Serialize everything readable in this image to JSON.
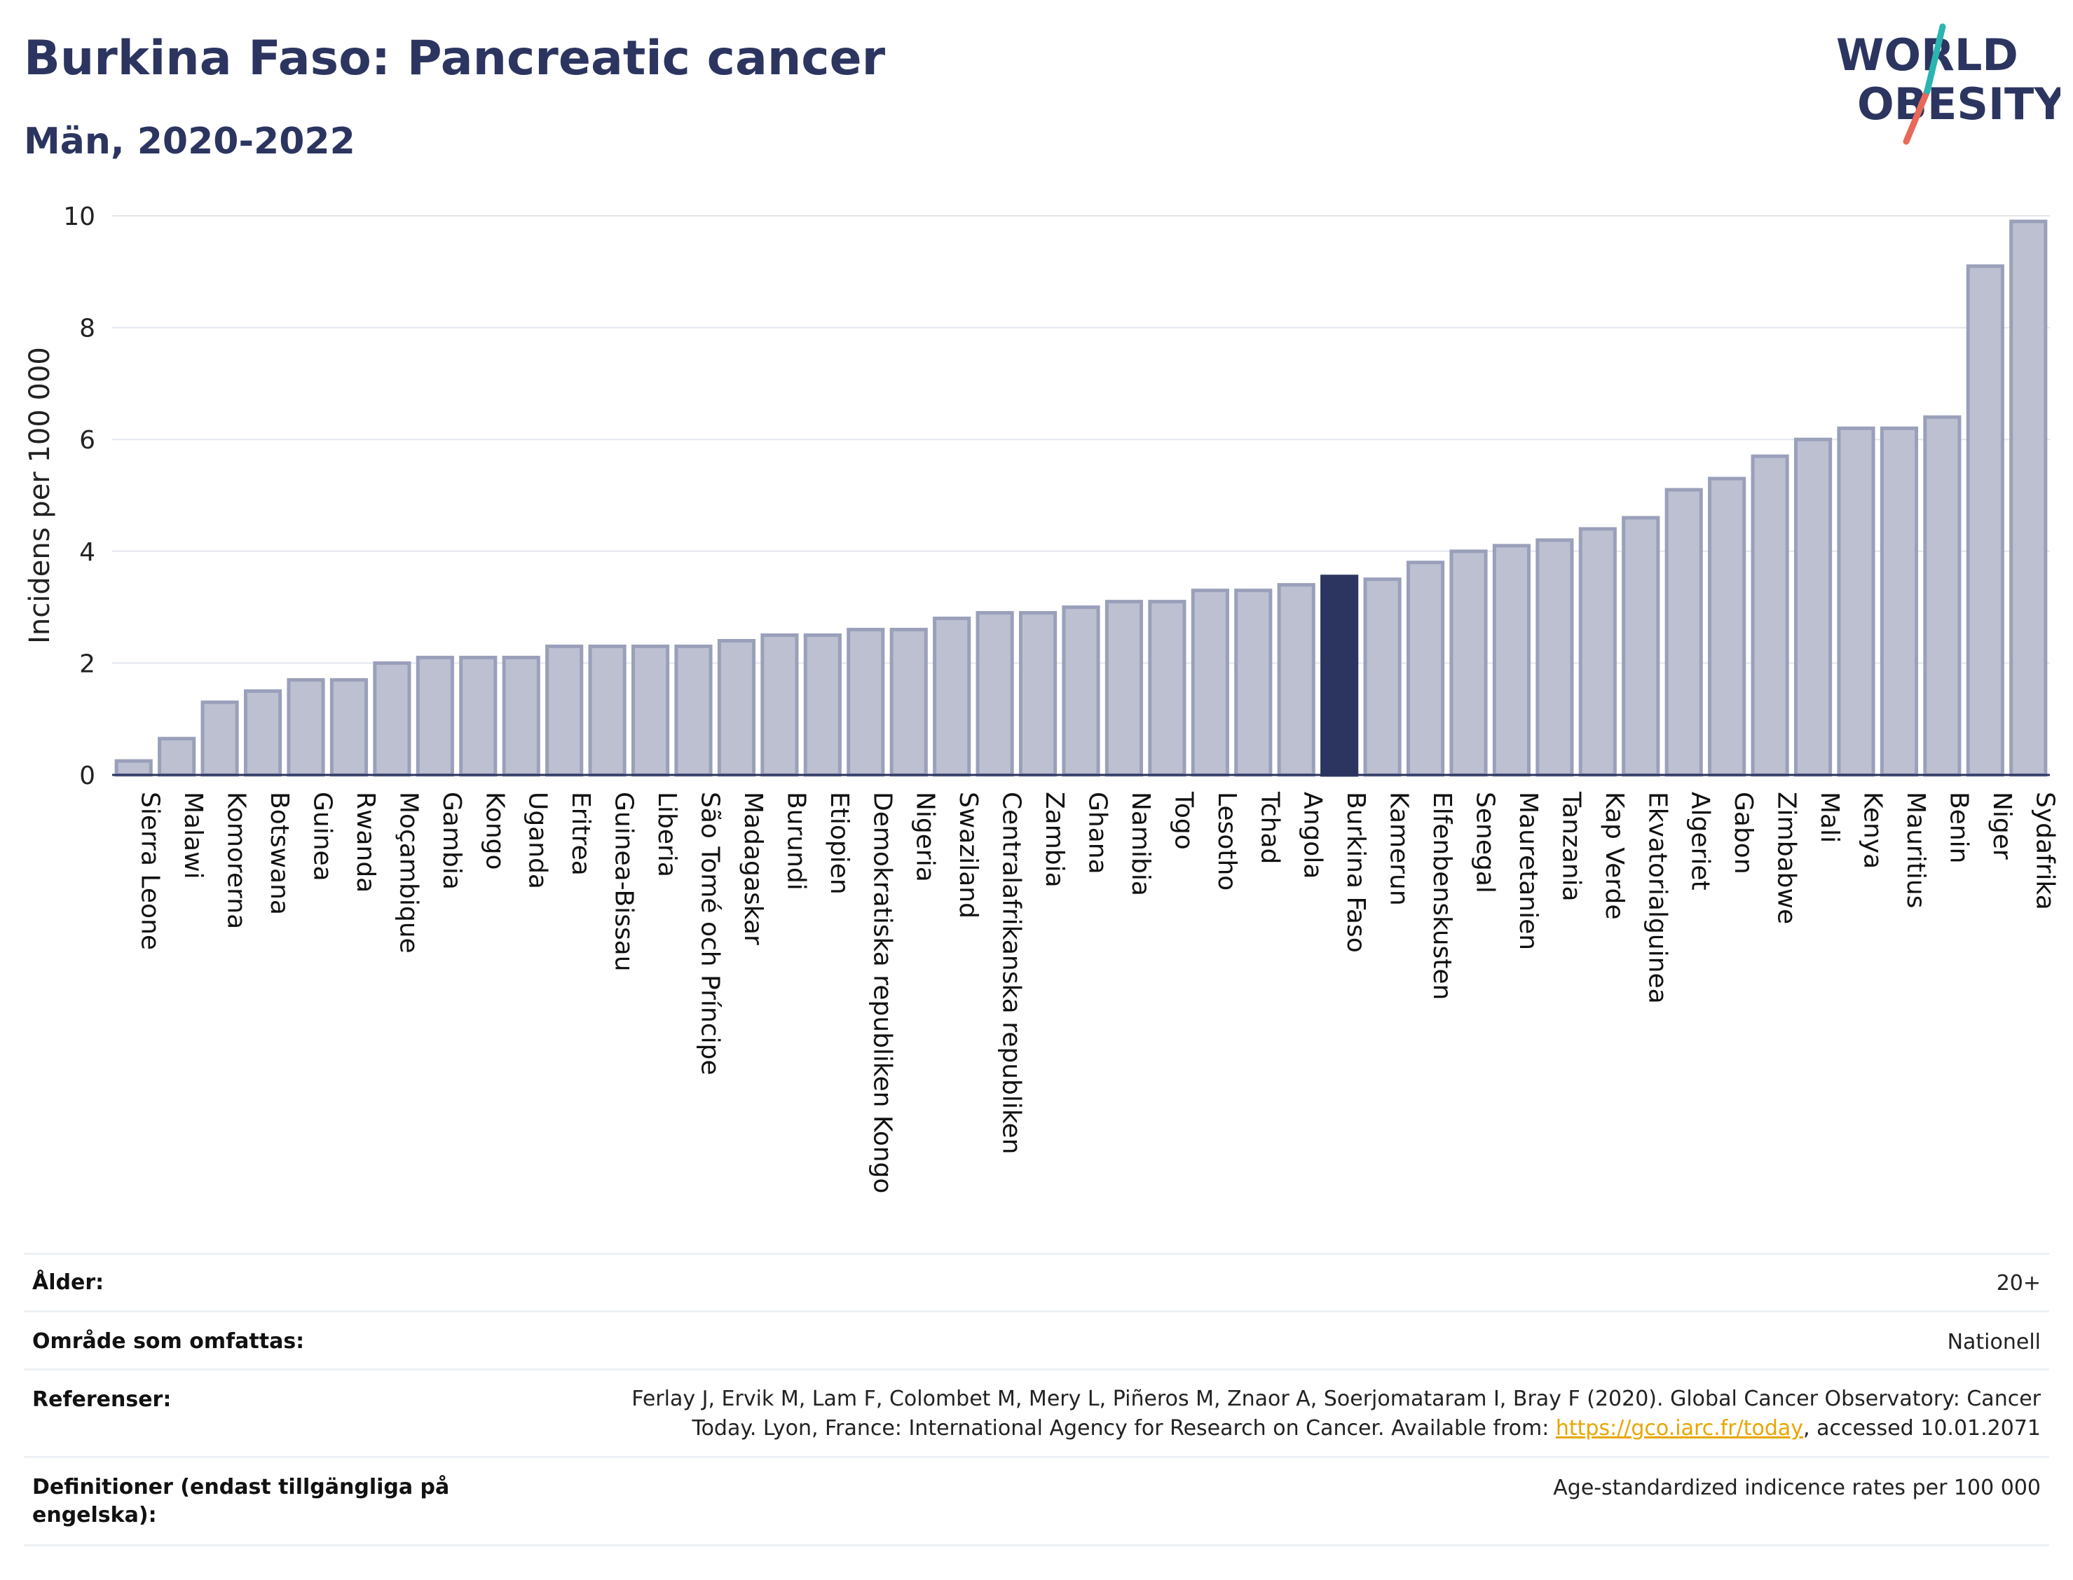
{
  "title": "Burkina Faso: Pancreatic cancer",
  "subtitle": "Män, 2020-2022",
  "logo": {
    "line1": "WORLD",
    "line2": "OBESITY"
  },
  "colors": {
    "bar": "#bcc0d1",
    "bar_stroke": "#9aa0ba",
    "highlight": "#2c3560",
    "text": "#2c3560",
    "grid": "#e3e6ee",
    "link": "#e8a600"
  },
  "chart_data": {
    "type": "bar",
    "title": "",
    "xlabel": "",
    "ylabel": "Incidens per 100 000",
    "ylim": [
      0,
      10
    ],
    "yticks": [
      0,
      2,
      4,
      6,
      8,
      10
    ],
    "grid": true,
    "highlight": "Burkina Faso",
    "categories": [
      "Sierra Leone",
      "Malawi",
      "Komorerna",
      "Botswana",
      "Guinea",
      "Rwanda",
      "Moçambique",
      "Gambia",
      "Kongo",
      "Uganda",
      "Eritrea",
      "Guinea-Bissau",
      "Liberia",
      "São Tomé och Príncipe",
      "Madagaskar",
      "Burundi",
      "Etiopien",
      "Demokratiska republiken Kongo",
      "Nigeria",
      "Swaziland",
      "Centralafrikanska republiken",
      "Zambia",
      "Ghana",
      "Namibia",
      "Togo",
      "Lesotho",
      "Tchad",
      "Angola",
      "Burkina Faso",
      "Kamerun",
      "Elfenbenskusten",
      "Senegal",
      "Mauretanien",
      "Tanzania",
      "Kap Verde",
      "Ekvatorialguinea",
      "Algeriet",
      "Gabon",
      "Zimbabwe",
      "Mali",
      "Kenya",
      "Mauritius",
      "Benin",
      "Niger",
      "Sydafrika"
    ],
    "values": [
      0.25,
      0.65,
      1.3,
      1.5,
      1.7,
      1.7,
      2.0,
      2.1,
      2.1,
      2.1,
      2.3,
      2.3,
      2.3,
      2.3,
      2.4,
      2.5,
      2.5,
      2.6,
      2.6,
      2.8,
      2.9,
      2.9,
      3.0,
      3.1,
      3.1,
      3.3,
      3.3,
      3.4,
      3.55,
      3.5,
      3.8,
      4.0,
      4.1,
      4.2,
      4.4,
      4.6,
      5.1,
      5.3,
      5.7,
      6.0,
      6.2,
      6.2,
      6.4,
      9.1,
      9.9
    ]
  },
  "info": {
    "age_label": "Ålder:",
    "age_value": "20+",
    "area_label": "Område som omfattas:",
    "area_value": "Nationell",
    "ref_label": "Referenser:",
    "ref_text_1": "Ferlay J, Ervik M, Lam F, Colombet M, Mery L, Piñeros M, Znaor A, Soerjomataram I, Bray F (2020). Global Cancer Observatory: Cancer",
    "ref_text_2a": "Today. Lyon, France: International Agency for Research on Cancer. Available from: ",
    "ref_link": "https://gco.iarc.fr/today",
    "ref_text_2b": ", accessed 10.01.2071",
    "def_label": "Definitioner (endast tillgängliga på engelska):",
    "def_value": "Age-standardized indicence rates per 100 000"
  }
}
